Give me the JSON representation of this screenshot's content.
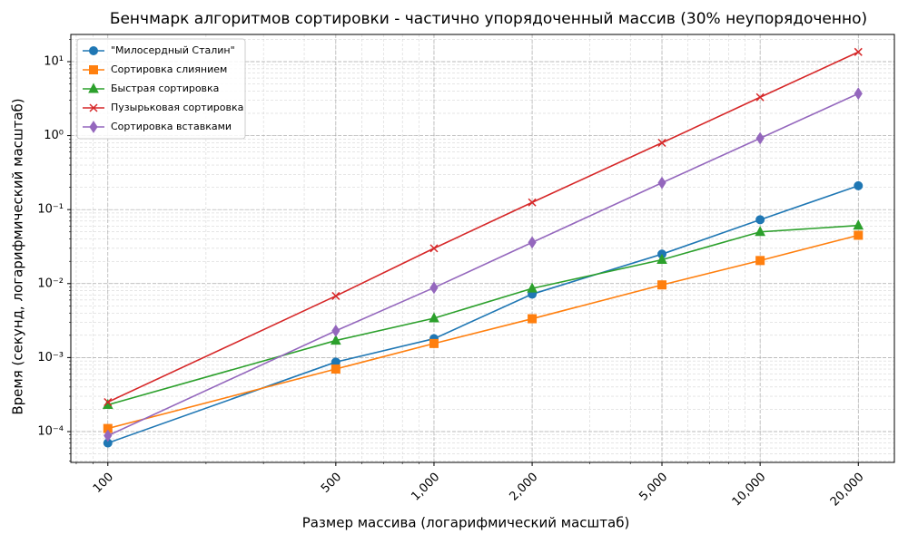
{
  "chart_data": {
    "type": "line",
    "title": "Бенчмарк алгоритмов сортировки - частично упорядоченный массив (30% неупорядоченно)",
    "x_label": "Размер массива (логарифмический масштаб)",
    "y_label": "Время (секунд, логарифмический масштаб)",
    "x": [
      100,
      500,
      1000,
      2000,
      5000,
      10000,
      20000
    ],
    "series": [
      {
        "name": "\"Милосердный Сталин\"",
        "color": "#1f77b4",
        "marker": "circle",
        "values": [
          7e-05,
          0.00087,
          0.0018,
          0.0072,
          0.025,
          0.073,
          0.21
        ]
      },
      {
        "name": "Сортировка слиянием",
        "color": "#ff7f0e",
        "marker": "square",
        "values": [
          0.00011,
          0.0007,
          0.00155,
          0.00335,
          0.0096,
          0.0205,
          0.045
        ]
      },
      {
        "name": "Быстрая сортировка",
        "color": "#2ca02c",
        "marker": "triangle",
        "values": [
          0.00023,
          0.0017,
          0.0034,
          0.0086,
          0.021,
          0.05,
          0.061
        ]
      },
      {
        "name": "Пузырьковая сортировка",
        "color": "#d62728",
        "marker": "x",
        "values": [
          0.00025,
          0.0068,
          0.03,
          0.125,
          0.8,
          3.3,
          13.5
        ]
      },
      {
        "name": "Сортировка вставками",
        "color": "#9467bd",
        "marker": "diamond",
        "values": [
          8.8e-05,
          0.0023,
          0.0088,
          0.036,
          0.23,
          0.92,
          3.7
        ]
      }
    ],
    "xscale": "log",
    "yscale": "log",
    "xlim": [
      77,
      25800
    ],
    "ylim": [
      3.83e-05,
      23.3
    ],
    "xticks": [
      100,
      500,
      {
        "value": 1000,
        "label": "1,000"
      },
      {
        "value": 2000,
        "label": "2,000"
      },
      {
        "value": 5000,
        "label": "5,000"
      },
      {
        "value": 10000,
        "label": "10,000"
      },
      {
        "value": 20000,
        "label": "20,000"
      }
    ],
    "yticks": [
      {
        "value": 0.0001,
        "label": "10⁻⁴"
      },
      {
        "value": 0.001,
        "label": "10⁻³"
      },
      {
        "value": 0.01,
        "label": "10⁻²"
      },
      {
        "value": 0.1,
        "label": "10⁻¹"
      },
      {
        "value": 1,
        "label": "10⁰"
      },
      {
        "value": 10,
        "label": "10¹"
      }
    ],
    "grid": true,
    "legend": "upper left"
  }
}
